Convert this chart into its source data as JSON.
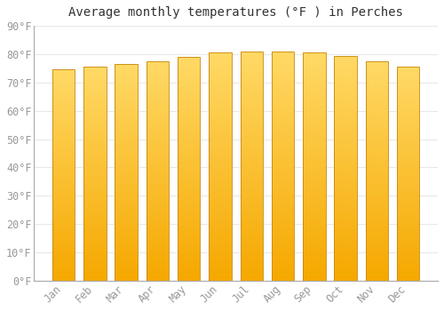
{
  "title": "Average monthly temperatures (°F ) in Perches",
  "months": [
    "Jan",
    "Feb",
    "Mar",
    "Apr",
    "May",
    "Jun",
    "Jul",
    "Aug",
    "Sep",
    "Oct",
    "Nov",
    "Dec"
  ],
  "values": [
    74.5,
    75.5,
    76.5,
    77.5,
    79.0,
    80.5,
    81.0,
    81.0,
    80.5,
    79.5,
    77.5,
    75.5
  ],
  "bar_color_bottom": "#F5A800",
  "bar_color_top": "#FFD966",
  "bar_edge_color": "#C8860A",
  "background_color": "#FFFFFF",
  "grid_color": "#E8E8E8",
  "ylim": [
    0,
    90
  ],
  "ytick_step": 10,
  "title_fontsize": 10,
  "tick_fontsize": 8.5,
  "tick_label_color": "#999999",
  "font_family": "monospace",
  "bar_width": 0.72,
  "n_grad": 100
}
